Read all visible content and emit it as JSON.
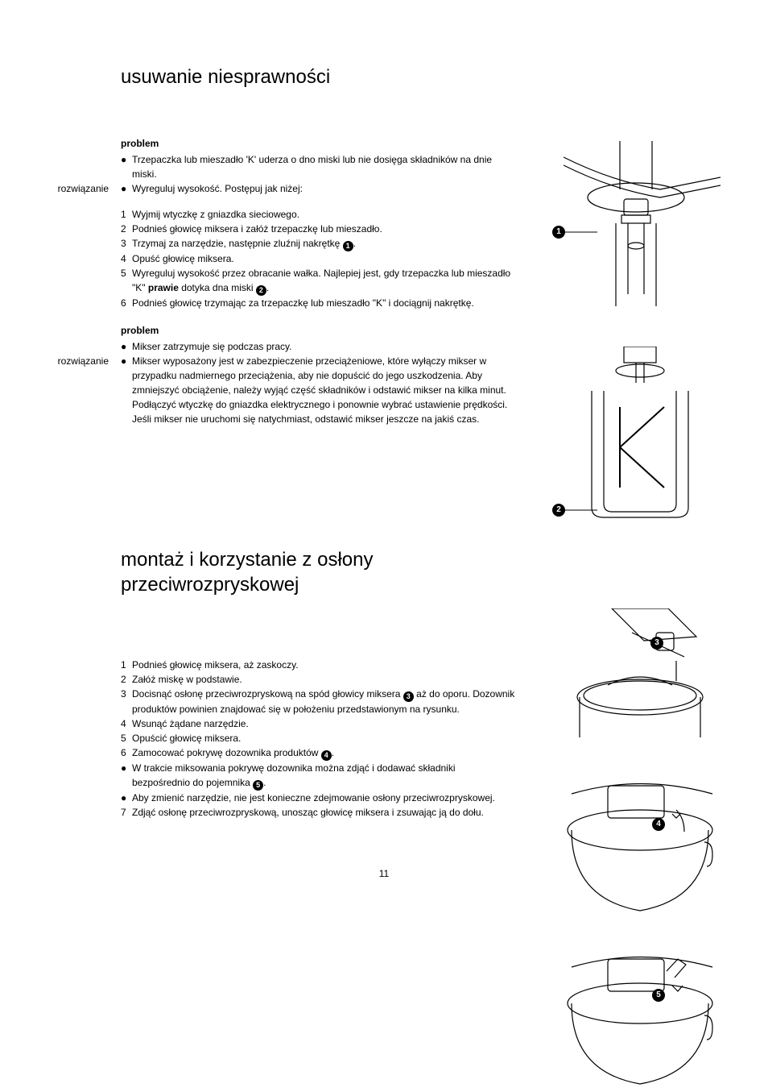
{
  "page_number": "11",
  "section1": {
    "title": "usuwanie niesprawności",
    "problem1_label": "problem",
    "problem1_bullet": "Trzepaczka lub mieszadło 'K' uderza o dno miski lub nie dosięga składników na dnie miski.",
    "solution1_label": "rozwiązanie",
    "solution1_bullet": "Wyreguluj wysokość. Postępuj jak niżej:",
    "steps1": [
      "Wyjmij wtyczkę z gniazdka sieciowego.",
      "Podnieś głowicę miksera i załóż trzepaczkę lub mieszadło.",
      "Trzymaj za narzędzie, następnie zluźnij nakrętkę ",
      "Opuść głowicę miksera.",
      "Wyreguluj wysokość przez obracanie wałka. Najlepiej jest, gdy trzepaczka lub mieszadło \"K\" ",
      "Podnieś głowicę trzymając za trzepaczkę lub mieszadło \"K\" i dociągnij nakrętkę."
    ],
    "step5_bold": "prawie",
    "step5_after": " dotyka dna miski ",
    "problem2_label": "problem",
    "problem2_bullet": "Mikser zatrzymuje się podczas pracy.",
    "solution2_label": "rozwiązanie",
    "solution2_bullet": "Mikser wyposażony jest w zabezpieczenie przeciążeniowe, które wyłączy mikser w przypadku nadmiernego przeciążenia, aby nie dopuścić do jego uszkodzenia. Aby zmniejszyć obciążenie, należy wyjąć część składników i odstawić mikser na kilka minut. Podłączyć wtyczkę do gniazdka elektrycznego i ponownie wybrać ustawienie prędkości. Jeśli mikser nie uruchomi się natychmiast, odstawić mikser jeszcze na jakiś czas."
  },
  "section2": {
    "title": "montaż i korzystanie z osłony przeciwrozpryskowej",
    "steps": [
      {
        "n": "1",
        "t": "Podnieś głowicę miksera, aż zaskoczy."
      },
      {
        "n": "2",
        "t": "Załóż miskę w podstawie."
      },
      {
        "n": "3",
        "t": "Docisnąć osłonę przeciwrozpryskową na spód głowicy miksera ",
        "ref": "3",
        "after": " aż do oporu. Dozownik produktów powinien znajdować się w położeniu przedstawionym na rysunku."
      },
      {
        "n": "4",
        "t": "Wsunąć żądane narzędzie."
      },
      {
        "n": "5",
        "t": "Opuścić głowicę miksera."
      },
      {
        "n": "6",
        "t": "Zamocować pokrywę dozownika produktów ",
        "ref": "4",
        "after": "."
      },
      {
        "n": "●",
        "t": "W trakcie miksowania pokrywę dozownika można zdjąć i dodawać składniki bezpośrednio do pojemnika ",
        "ref": "5",
        "after": "."
      },
      {
        "n": "●",
        "t": "Aby zmienić narzędzie, nie jest konieczne zdejmowanie osłony przeciwrozpryskowej."
      },
      {
        "n": "7",
        "t": "Zdjąć osłonę przeciwrozpryskową, unosząc głowicę miksera i zsuwając ją do dołu."
      }
    ]
  },
  "callouts": {
    "c1": "1",
    "c2": "2",
    "c3": "3",
    "c4": "4",
    "c5": "5"
  },
  "refs": {
    "r1": "1",
    "r2": "2",
    "r3": "3",
    "r4": "4",
    "r5": "5"
  },
  "colors": {
    "text": "#000000",
    "bg": "#ffffff",
    "line": "#000000"
  }
}
